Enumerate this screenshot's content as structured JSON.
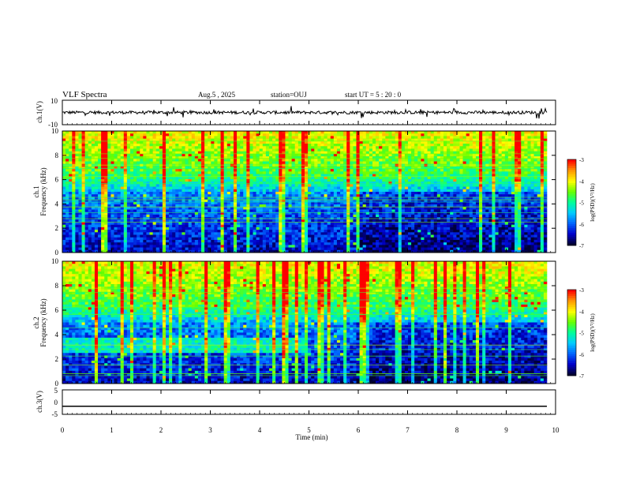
{
  "header": {
    "title": "VLF Spectra",
    "date": "Aug.5  , 2025",
    "station": "station=OUJ",
    "start": "start  UT  =   5  : 20 : 0"
  },
  "colors": {
    "background": "#ffffff",
    "axes": "#000000",
    "colormap": [
      "#000033",
      "#0000cc",
      "#0066ff",
      "#00ccff",
      "#00ff99",
      "#66ff00",
      "#ffff00",
      "#ff9900",
      "#ff0000",
      "#ffffff"
    ]
  },
  "chart_data": [
    {
      "type": "line",
      "name": "ch1-waveform",
      "ylabel": "ch.1(V)",
      "ylim": [
        -10,
        10
      ],
      "yticks": [
        "10",
        "-10"
      ],
      "baseline": 0,
      "description_series": "voltage time series around 0 V"
    },
    {
      "type": "heatmap",
      "name": "ch1-spectrogram",
      "ylabel_1": "ch.1",
      "ylabel_2": "Frequency (kHz)",
      "ylim": [
        0,
        10
      ],
      "yticks": [
        "0",
        "2",
        "4",
        "6",
        "8",
        "10"
      ],
      "colorbar": {
        "label": "log(PSD)(V²/Hz)",
        "range": [
          -7,
          -3
        ],
        "ticks": [
          "-3",
          "-4",
          "-5",
          "-6",
          "-7"
        ]
      }
    },
    {
      "type": "heatmap",
      "name": "ch2-spectrogram",
      "ylabel_1": "ch.2",
      "ylabel_2": "Frequency (kHz)",
      "ylim": [
        0,
        10
      ],
      "yticks": [
        "0",
        "2",
        "4",
        "6",
        "8",
        "10"
      ],
      "colorbar": {
        "label": "log(PSD)(V²/Hz)",
        "range": [
          -7,
          -3
        ],
        "ticks": [
          "-3",
          "-4",
          "-5",
          "-6",
          "-7"
        ]
      }
    },
    {
      "type": "line",
      "name": "ch3-waveform",
      "ylabel": "ch.3(V)",
      "ylim": [
        -5,
        5
      ],
      "yticks": [
        "5",
        "0",
        "-5"
      ],
      "baseline": -1.7
    }
  ],
  "xaxis": {
    "label": "Time  (min)",
    "range": [
      0,
      10
    ],
    "ticks": [
      "0",
      "1",
      "2",
      "3",
      "4",
      "5",
      "6",
      "7",
      "8",
      "9",
      "10"
    ]
  }
}
